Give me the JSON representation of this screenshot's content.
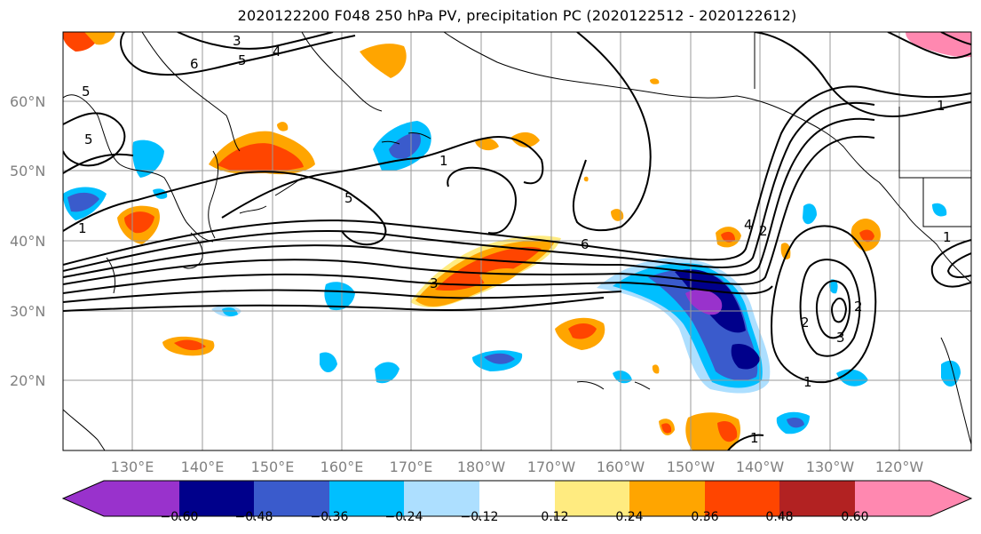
{
  "title": "2020122200 F048 250 hPa PV, precipitation PC (2020122512 - 2020122612)",
  "map": {
    "lat_labels": [
      "60°N",
      "50°N",
      "40°N",
      "30°N",
      "20°N"
    ],
    "lon_labels": [
      "130°E",
      "140°E",
      "150°E",
      "160°E",
      "170°E",
      "180°W",
      "170°W",
      "160°W",
      "150°W",
      "140°W",
      "130°W",
      "120°W"
    ],
    "contour_labels": [
      "3",
      "4",
      "5",
      "6",
      "5",
      "5",
      "1",
      "5",
      "1",
      "6",
      "3",
      "4",
      "2",
      "1",
      "1",
      "2",
      "2",
      "3",
      "1",
      "1"
    ],
    "gridlines": true,
    "contour_color": "#000000"
  },
  "colorbar": {
    "ticks": [
      "−0.60",
      "−0.48",
      "−0.36",
      "−0.24",
      "−0.12",
      "0.12",
      "0.24",
      "0.36",
      "0.48",
      "0.60"
    ],
    "colors": [
      "#9932CC",
      "#00008B",
      "#3A5BCC",
      "#00BFFF",
      "#ADDFFF",
      "#FFFFFF",
      "#FFEB80",
      "#FFA500",
      "#FF4500",
      "#B22222",
      "#FF88B0"
    ]
  }
}
